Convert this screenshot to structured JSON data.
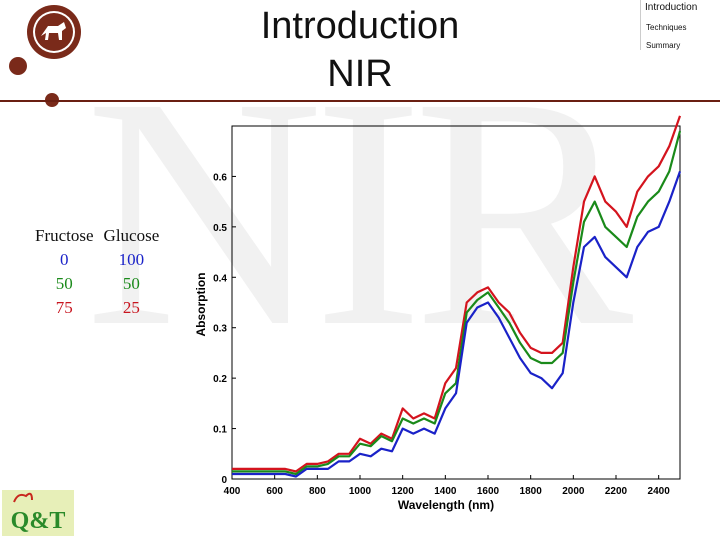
{
  "header": {
    "title_line1": "Introduction",
    "title_line2": "NIR",
    "watermark": "NIR",
    "logo_text": "Q&T"
  },
  "nav": {
    "items": [
      {
        "label": "Introduction",
        "active": true
      },
      {
        "label": "Techniques",
        "active": false
      },
      {
        "label": "Summary",
        "active": false
      }
    ]
  },
  "legend": {
    "headers": [
      "Fructose",
      "Glucose"
    ],
    "rows": [
      {
        "fructose": "0",
        "glucose": "100",
        "color": "#1a22c8"
      },
      {
        "fructose": "50",
        "glucose": "50",
        "color": "#1a8a1a"
      },
      {
        "fructose": "75",
        "glucose": "25",
        "color": "#c8141e"
      }
    ]
  },
  "chart_data": {
    "type": "line",
    "title": "",
    "xlabel": "Wavelength (nm)",
    "ylabel": "Absorption",
    "xlim": [
      400,
      2500
    ],
    "ylim": [
      0,
      0.7
    ],
    "xticks": [
      400,
      600,
      800,
      1000,
      1200,
      1400,
      1600,
      1800,
      2000,
      2200,
      2400
    ],
    "yticks": [
      0,
      0.1,
      0.2,
      0.3,
      0.4,
      0.5,
      0.6
    ],
    "ytick_labels": [
      "0",
      "0.1",
      "0.2",
      "0.3",
      "0.4",
      "0.5",
      "0.6"
    ],
    "x": [
      400,
      450,
      500,
      550,
      600,
      650,
      700,
      750,
      800,
      850,
      900,
      950,
      1000,
      1050,
      1100,
      1150,
      1200,
      1250,
      1300,
      1350,
      1400,
      1450,
      1500,
      1550,
      1600,
      1650,
      1700,
      1750,
      1800,
      1850,
      1900,
      1950,
      2000,
      2050,
      2100,
      2150,
      2200,
      2250,
      2300,
      2350,
      2400,
      2450,
      2500
    ],
    "series": [
      {
        "name": "Fructose 75 / Glucose 25",
        "color": "#d4141e",
        "values": [
          0.02,
          0.02,
          0.02,
          0.02,
          0.02,
          0.02,
          0.015,
          0.03,
          0.03,
          0.035,
          0.05,
          0.05,
          0.08,
          0.07,
          0.09,
          0.08,
          0.14,
          0.12,
          0.13,
          0.12,
          0.19,
          0.22,
          0.35,
          0.37,
          0.38,
          0.35,
          0.33,
          0.29,
          0.26,
          0.25,
          0.25,
          0.27,
          0.42,
          0.55,
          0.6,
          0.55,
          0.53,
          0.5,
          0.57,
          0.6,
          0.62,
          0.66,
          0.72
        ]
      },
      {
        "name": "Fructose 50 / Glucose 50",
        "color": "#1a8a1a",
        "values": [
          0.015,
          0.015,
          0.015,
          0.015,
          0.015,
          0.015,
          0.01,
          0.025,
          0.025,
          0.03,
          0.045,
          0.045,
          0.07,
          0.065,
          0.085,
          0.075,
          0.12,
          0.11,
          0.12,
          0.11,
          0.17,
          0.19,
          0.33,
          0.355,
          0.37,
          0.34,
          0.31,
          0.27,
          0.24,
          0.23,
          0.23,
          0.25,
          0.39,
          0.51,
          0.55,
          0.5,
          0.48,
          0.46,
          0.52,
          0.55,
          0.57,
          0.61,
          0.69
        ]
      },
      {
        "name": "Fructose 0 / Glucose 100",
        "color": "#1a22c8",
        "values": [
          0.01,
          0.01,
          0.01,
          0.01,
          0.01,
          0.01,
          0.005,
          0.02,
          0.02,
          0.02,
          0.035,
          0.035,
          0.05,
          0.045,
          0.06,
          0.055,
          0.1,
          0.09,
          0.1,
          0.09,
          0.14,
          0.17,
          0.31,
          0.34,
          0.35,
          0.32,
          0.28,
          0.24,
          0.21,
          0.2,
          0.18,
          0.21,
          0.35,
          0.46,
          0.48,
          0.44,
          0.42,
          0.4,
          0.46,
          0.49,
          0.5,
          0.55,
          0.61
        ]
      }
    ]
  }
}
